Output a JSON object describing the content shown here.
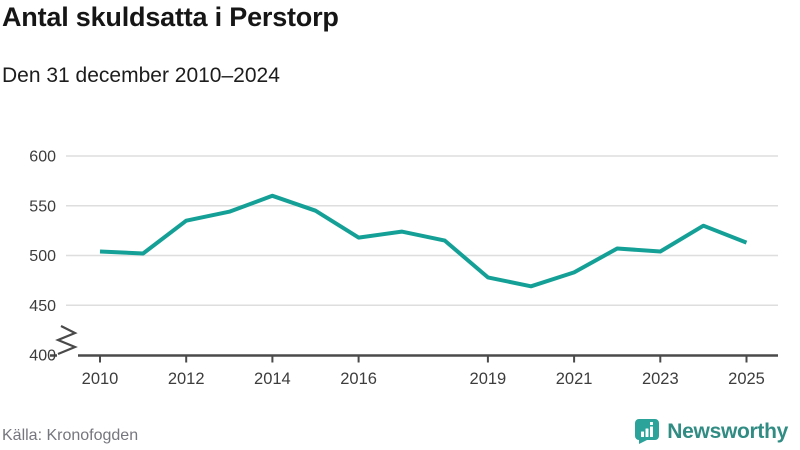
{
  "chart_data": {
    "type": "line",
    "title": "Antal skuldsatta i Perstorp",
    "subtitle": "Den 31 december 2010–2024",
    "x": [
      2010,
      2011,
      2012,
      2013,
      2014,
      2015,
      2016,
      2017,
      2018,
      2019,
      2020,
      2021,
      2022,
      2023,
      2024,
      2025
    ],
    "values": [
      504,
      502,
      535,
      544,
      560,
      545,
      518,
      524,
      515,
      478,
      469,
      483,
      507,
      504,
      530,
      513
    ],
    "y_ticks": [
      400,
      450,
      500,
      550,
      600
    ],
    "x_ticks": [
      {
        "label": "2010",
        "pos": 2010
      },
      {
        "label": "2012",
        "pos": 2012
      },
      {
        "label": "2014",
        "pos": 2014
      },
      {
        "label": "2016",
        "pos": 2016
      },
      {
        "label": "2019",
        "pos": 2019
      },
      {
        "label": "2021",
        "pos": 2021
      },
      {
        "label": "2023",
        "pos": 2023
      },
      {
        "label": "2025",
        "pos": 2025
      }
    ],
    "ylim": [
      400,
      600
    ],
    "axis_break": true,
    "grid": "horizontal",
    "legend": "none"
  },
  "footer": {
    "source": "Källa: Kronofogden",
    "brand": "Newsworthy"
  },
  "colors": {
    "line": "#14a096",
    "grid": "#dedede",
    "axis": "#4a4a4a",
    "brand_icon": "#2ba39a",
    "brand_text": "#318c83"
  }
}
